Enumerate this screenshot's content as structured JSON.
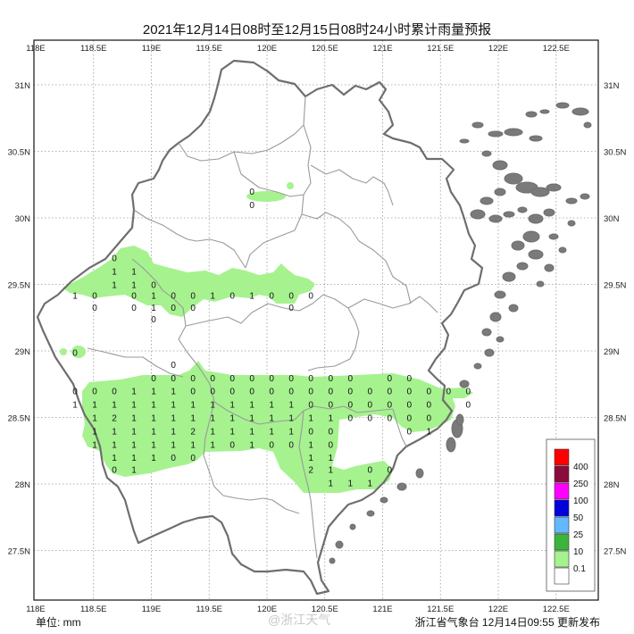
{
  "title": "2021年12月14日08时至12月15日08时24小时累计雨量预报",
  "unit_label": "单位: mm",
  "footer": "浙江省气象台  12月14日09:55 更新发布",
  "watermark": "@浙江天气",
  "axes": {
    "lon_labels": [
      "118E",
      "118.5E",
      "119E",
      "119.5E",
      "120E",
      "120.5E",
      "121E",
      "121.5E",
      "122E",
      "122.5E"
    ],
    "lat_labels": [
      "31N",
      "30.5N",
      "30N",
      "29.5N",
      "29N",
      "28.5N",
      "28N",
      "27.5N"
    ],
    "lon_range": [
      118.0,
      122.75
    ],
    "lat_range": [
      27.15,
      31.25
    ],
    "grid": true
  },
  "legend": {
    "items": [
      {
        "label": "400",
        "color": "#ff0000"
      },
      {
        "label": "250",
        "color": "#8b0a3c"
      },
      {
        "label": "100",
        "color": "#ff00ff"
      },
      {
        "label": "50",
        "color": "#0000dd"
      },
      {
        "label": "25",
        "color": "#63b8ff"
      },
      {
        "label": "10",
        "color": "#3cb43c"
      },
      {
        "label": "0.1",
        "color": "#a6f28f"
      },
      {
        "label": "",
        "color": "#ffffff"
      }
    ]
  },
  "colors": {
    "rain_light": "#a6f28f",
    "border": "#6e6e6e",
    "grid": "#9a9a9a"
  },
  "rain_labels": [
    {
      "lon": 119.87,
      "lat": 30.2,
      "v": "0"
    },
    {
      "lon": 119.87,
      "lat": 30.1,
      "v": "0"
    },
    {
      "lon": 118.68,
      "lat": 29.7,
      "v": "0"
    },
    {
      "lon": 118.68,
      "lat": 29.6,
      "v": "1"
    },
    {
      "lon": 118.85,
      "lat": 29.6,
      "v": "1"
    },
    {
      "lon": 118.68,
      "lat": 29.5,
      "v": "1"
    },
    {
      "lon": 118.85,
      "lat": 29.5,
      "v": "1"
    },
    {
      "lon": 119.02,
      "lat": 29.5,
      "v": "0"
    },
    {
      "lon": 118.34,
      "lat": 29.42,
      "v": "1"
    },
    {
      "lon": 118.51,
      "lat": 29.42,
      "v": "0"
    },
    {
      "lon": 118.85,
      "lat": 29.42,
      "v": "0"
    },
    {
      "lon": 119.02,
      "lat": 29.42,
      "v": "1"
    },
    {
      "lon": 119.19,
      "lat": 29.42,
      "v": "0"
    },
    {
      "lon": 119.36,
      "lat": 29.42,
      "v": "0"
    },
    {
      "lon": 119.53,
      "lat": 29.42,
      "v": "1"
    },
    {
      "lon": 119.7,
      "lat": 29.42,
      "v": "0"
    },
    {
      "lon": 119.87,
      "lat": 29.42,
      "v": "1"
    },
    {
      "lon": 120.04,
      "lat": 29.42,
      "v": "0"
    },
    {
      "lon": 120.21,
      "lat": 29.42,
      "v": "0"
    },
    {
      "lon": 120.38,
      "lat": 29.42,
      "v": "0"
    },
    {
      "lon": 118.51,
      "lat": 29.33,
      "v": "0"
    },
    {
      "lon": 118.85,
      "lat": 29.33,
      "v": "0"
    },
    {
      "lon": 119.02,
      "lat": 29.33,
      "v": "1"
    },
    {
      "lon": 119.19,
      "lat": 29.33,
      "v": "0"
    },
    {
      "lon": 119.36,
      "lat": 29.33,
      "v": "0"
    },
    {
      "lon": 120.21,
      "lat": 29.33,
      "v": "0"
    },
    {
      "lon": 119.02,
      "lat": 29.24,
      "v": "0"
    },
    {
      "lon": 118.34,
      "lat": 28.99,
      "v": "0"
    },
    {
      "lon": 119.19,
      "lat": 28.9,
      "v": "0"
    },
    {
      "lon": 119.02,
      "lat": 28.8,
      "v": "0"
    },
    {
      "lon": 119.19,
      "lat": 28.8,
      "v": "0"
    },
    {
      "lon": 119.36,
      "lat": 28.8,
      "v": "0"
    },
    {
      "lon": 119.53,
      "lat": 28.8,
      "v": "0"
    },
    {
      "lon": 119.7,
      "lat": 28.8,
      "v": "0"
    },
    {
      "lon": 119.87,
      "lat": 28.8,
      "v": "0"
    },
    {
      "lon": 120.04,
      "lat": 28.8,
      "v": "0"
    },
    {
      "lon": 120.21,
      "lat": 28.8,
      "v": "0"
    },
    {
      "lon": 120.38,
      "lat": 28.8,
      "v": "0"
    },
    {
      "lon": 120.55,
      "lat": 28.8,
      "v": "0"
    },
    {
      "lon": 120.72,
      "lat": 28.8,
      "v": "0"
    },
    {
      "lon": 121.06,
      "lat": 28.8,
      "v": "0"
    },
    {
      "lon": 121.23,
      "lat": 28.8,
      "v": "0"
    },
    {
      "lon": 118.34,
      "lat": 28.7,
      "v": "0"
    },
    {
      "lon": 118.51,
      "lat": 28.7,
      "v": "0"
    },
    {
      "lon": 118.68,
      "lat": 28.7,
      "v": "0"
    },
    {
      "lon": 118.85,
      "lat": 28.7,
      "v": "1"
    },
    {
      "lon": 119.02,
      "lat": 28.7,
      "v": "1"
    },
    {
      "lon": 119.19,
      "lat": 28.7,
      "v": "1"
    },
    {
      "lon": 119.36,
      "lat": 28.7,
      "v": "0"
    },
    {
      "lon": 119.53,
      "lat": 28.7,
      "v": "0"
    },
    {
      "lon": 119.7,
      "lat": 28.7,
      "v": "0"
    },
    {
      "lon": 119.87,
      "lat": 28.7,
      "v": "0"
    },
    {
      "lon": 120.04,
      "lat": 28.7,
      "v": "0"
    },
    {
      "lon": 120.21,
      "lat": 28.7,
      "v": "0"
    },
    {
      "lon": 120.38,
      "lat": 28.7,
      "v": "0"
    },
    {
      "lon": 120.55,
      "lat": 28.7,
      "v": "0"
    },
    {
      "lon": 120.72,
      "lat": 28.7,
      "v": "0"
    },
    {
      "lon": 120.89,
      "lat": 28.7,
      "v": "0"
    },
    {
      "lon": 121.06,
      "lat": 28.7,
      "v": "0"
    },
    {
      "lon": 121.23,
      "lat": 28.7,
      "v": "0"
    },
    {
      "lon": 121.4,
      "lat": 28.7,
      "v": "0"
    },
    {
      "lon": 121.57,
      "lat": 28.7,
      "v": "0"
    },
    {
      "lon": 121.74,
      "lat": 28.7,
      "v": "0"
    },
    {
      "lon": 118.34,
      "lat": 28.6,
      "v": "1"
    },
    {
      "lon": 118.51,
      "lat": 28.6,
      "v": "1"
    },
    {
      "lon": 118.68,
      "lat": 28.6,
      "v": "1"
    },
    {
      "lon": 118.85,
      "lat": 28.6,
      "v": "1"
    },
    {
      "lon": 119.02,
      "lat": 28.6,
      "v": "1"
    },
    {
      "lon": 119.19,
      "lat": 28.6,
      "v": "1"
    },
    {
      "lon": 119.36,
      "lat": 28.6,
      "v": "1"
    },
    {
      "lon": 119.53,
      "lat": 28.6,
      "v": "1"
    },
    {
      "lon": 119.7,
      "lat": 28.6,
      "v": "1"
    },
    {
      "lon": 119.87,
      "lat": 28.6,
      "v": "1"
    },
    {
      "lon": 120.04,
      "lat": 28.6,
      "v": "1"
    },
    {
      "lon": 120.21,
      "lat": 28.6,
      "v": "1"
    },
    {
      "lon": 120.38,
      "lat": 28.6,
      "v": "0"
    },
    {
      "lon": 120.55,
      "lat": 28.6,
      "v": "0"
    },
    {
      "lon": 120.72,
      "lat": 28.6,
      "v": "0"
    },
    {
      "lon": 120.89,
      "lat": 28.6,
      "v": "0"
    },
    {
      "lon": 121.06,
      "lat": 28.6,
      "v": "0"
    },
    {
      "lon": 121.23,
      "lat": 28.6,
      "v": "0"
    },
    {
      "lon": 121.4,
      "lat": 28.6,
      "v": "0"
    },
    {
      "lon": 121.74,
      "lat": 28.6,
      "v": "0"
    },
    {
      "lon": 118.51,
      "lat": 28.5,
      "v": "1"
    },
    {
      "lon": 118.68,
      "lat": 28.5,
      "v": "2"
    },
    {
      "lon": 118.85,
      "lat": 28.5,
      "v": "1"
    },
    {
      "lon": 119.02,
      "lat": 28.5,
      "v": "1"
    },
    {
      "lon": 119.19,
      "lat": 28.5,
      "v": "1"
    },
    {
      "lon": 119.36,
      "lat": 28.5,
      "v": "1"
    },
    {
      "lon": 119.53,
      "lat": 28.5,
      "v": "1"
    },
    {
      "lon": 119.7,
      "lat": 28.5,
      "v": "1"
    },
    {
      "lon": 119.87,
      "lat": 28.5,
      "v": "1"
    },
    {
      "lon": 120.04,
      "lat": 28.5,
      "v": "1"
    },
    {
      "lon": 120.21,
      "lat": 28.5,
      "v": "1"
    },
    {
      "lon": 120.38,
      "lat": 28.5,
      "v": "1"
    },
    {
      "lon": 120.55,
      "lat": 28.5,
      "v": "1"
    },
    {
      "lon": 120.72,
      "lat": 28.5,
      "v": "0"
    },
    {
      "lon": 120.89,
      "lat": 28.5,
      "v": "0"
    },
    {
      "lon": 121.06,
      "lat": 28.5,
      "v": "0"
    },
    {
      "lon": 121.23,
      "lat": 28.5,
      "v": "0"
    },
    {
      "lon": 121.4,
      "lat": 28.5,
      "v": "0"
    },
    {
      "lon": 118.51,
      "lat": 28.4,
      "v": "1"
    },
    {
      "lon": 118.68,
      "lat": 28.4,
      "v": "1"
    },
    {
      "lon": 118.85,
      "lat": 28.4,
      "v": "1"
    },
    {
      "lon": 119.02,
      "lat": 28.4,
      "v": "1"
    },
    {
      "lon": 119.19,
      "lat": 28.4,
      "v": "1"
    },
    {
      "lon": 119.36,
      "lat": 28.4,
      "v": "2"
    },
    {
      "lon": 119.53,
      "lat": 28.4,
      "v": "1"
    },
    {
      "lon": 119.7,
      "lat": 28.4,
      "v": "1"
    },
    {
      "lon": 119.87,
      "lat": 28.4,
      "v": "1"
    },
    {
      "lon": 120.04,
      "lat": 28.4,
      "v": "1"
    },
    {
      "lon": 120.21,
      "lat": 28.4,
      "v": "1"
    },
    {
      "lon": 120.38,
      "lat": 28.4,
      "v": "0"
    },
    {
      "lon": 120.55,
      "lat": 28.4,
      "v": "0"
    },
    {
      "lon": 121.23,
      "lat": 28.4,
      "v": "0"
    },
    {
      "lon": 121.4,
      "lat": 28.4,
      "v": "1"
    },
    {
      "lon": 118.51,
      "lat": 28.3,
      "v": "1"
    },
    {
      "lon": 118.68,
      "lat": 28.3,
      "v": "1"
    },
    {
      "lon": 118.85,
      "lat": 28.3,
      "v": "1"
    },
    {
      "lon": 119.02,
      "lat": 28.3,
      "v": "1"
    },
    {
      "lon": 119.19,
      "lat": 28.3,
      "v": "1"
    },
    {
      "lon": 119.36,
      "lat": 28.3,
      "v": "1"
    },
    {
      "lon": 119.53,
      "lat": 28.3,
      "v": "1"
    },
    {
      "lon": 119.7,
      "lat": 28.3,
      "v": "0"
    },
    {
      "lon": 119.87,
      "lat": 28.3,
      "v": "1"
    },
    {
      "lon": 120.04,
      "lat": 28.3,
      "v": "0"
    },
    {
      "lon": 120.21,
      "lat": 28.3,
      "v": "0"
    },
    {
      "lon": 120.38,
      "lat": 28.3,
      "v": "1"
    },
    {
      "lon": 120.55,
      "lat": 28.3,
      "v": "0"
    },
    {
      "lon": 118.68,
      "lat": 28.2,
      "v": "1"
    },
    {
      "lon": 118.85,
      "lat": 28.2,
      "v": "1"
    },
    {
      "lon": 119.02,
      "lat": 28.2,
      "v": "1"
    },
    {
      "lon": 119.19,
      "lat": 28.2,
      "v": "0"
    },
    {
      "lon": 119.36,
      "lat": 28.2,
      "v": "0"
    },
    {
      "lon": 120.38,
      "lat": 28.2,
      "v": "1"
    },
    {
      "lon": 120.55,
      "lat": 28.2,
      "v": "1"
    },
    {
      "lon": 118.68,
      "lat": 28.11,
      "v": "0"
    },
    {
      "lon": 118.85,
      "lat": 28.11,
      "v": "1"
    },
    {
      "lon": 120.38,
      "lat": 28.11,
      "v": "2"
    },
    {
      "lon": 120.55,
      "lat": 28.11,
      "v": "1"
    },
    {
      "lon": 120.89,
      "lat": 28.11,
      "v": "0"
    },
    {
      "lon": 121.06,
      "lat": 28.11,
      "v": "0"
    },
    {
      "lon": 120.55,
      "lat": 28.01,
      "v": "1"
    },
    {
      "lon": 120.72,
      "lat": 28.01,
      "v": "1"
    },
    {
      "lon": 120.89,
      "lat": 28.01,
      "v": "1"
    }
  ]
}
